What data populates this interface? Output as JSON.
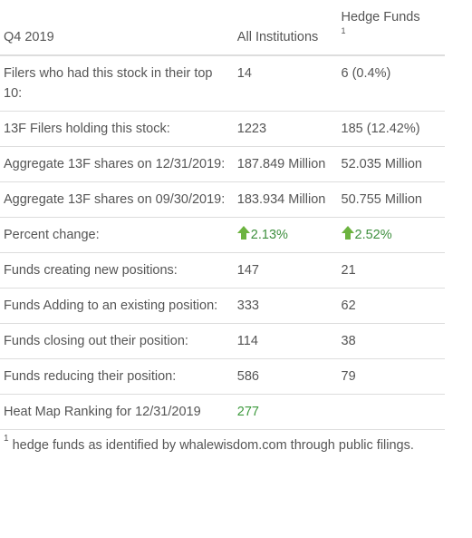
{
  "table": {
    "header": {
      "period": "Q4 2019",
      "col_all": "All Institutions",
      "col_hedge": "Hedge Funds",
      "col_hedge_sup": "1"
    },
    "rows": [
      {
        "label": "Filers who had this stock in their top 10:",
        "all": "14",
        "hedge": "6 (0.4%)"
      },
      {
        "label": "13F Filers holding this stock:",
        "all": "1223",
        "hedge": "185 (12.42%)"
      },
      {
        "label": "Aggregate 13F shares on 12/31/2019:",
        "all": "187.849 Million",
        "hedge": "52.035 Million"
      },
      {
        "label": "Aggregate 13F shares on 09/30/2019:",
        "all": "183.934 Million",
        "hedge": "50.755 Million"
      },
      {
        "label": "Percent change:",
        "all": "2.13%",
        "hedge": "2.52%",
        "all_direction": "up",
        "hedge_direction": "up",
        "up_color": "#6cb33f"
      },
      {
        "label": "Funds creating new positions:",
        "all": "147",
        "hedge": "21"
      },
      {
        "label": "Funds Adding to an existing position:",
        "all": "333",
        "hedge": "62"
      },
      {
        "label": "Funds closing out their position:",
        "all": "114",
        "hedge": "38"
      },
      {
        "label": "Funds reducing their position:",
        "all": "586",
        "hedge": "79"
      },
      {
        "label": "Heat Map Ranking for 12/31/2019",
        "all": "277",
        "hedge": "",
        "all_color": "#3e9a3e"
      }
    ]
  },
  "footnote": {
    "marker": "1",
    "text": " hedge funds as identified by whalewisdom.com through public filings."
  }
}
